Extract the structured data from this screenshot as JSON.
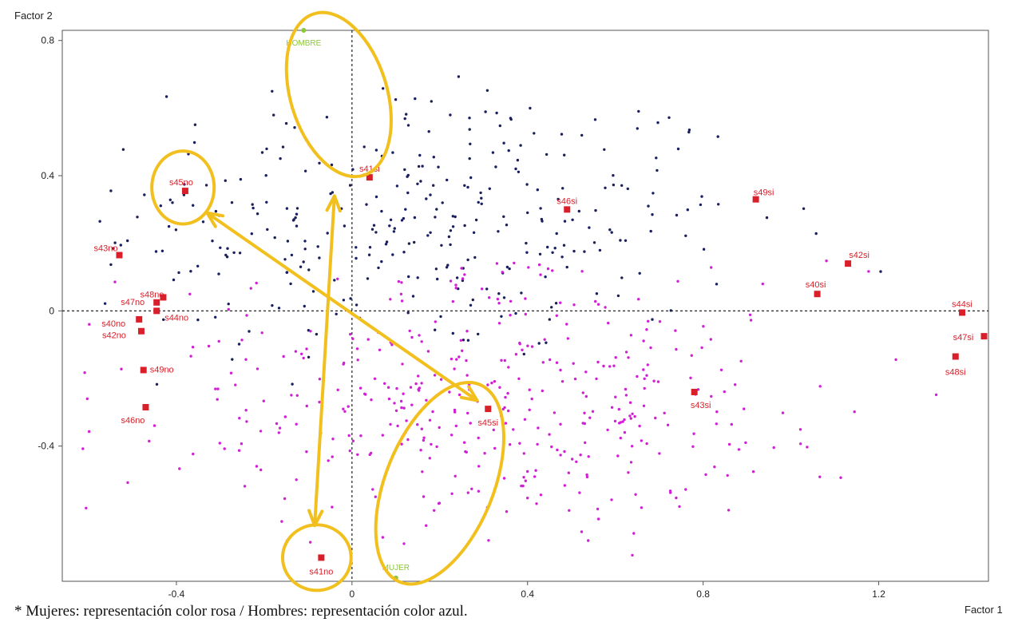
{
  "chart_data": {
    "type": "scatter",
    "xlabel": "Factor 1",
    "ylabel": "Factor 2",
    "xlim": [
      -0.66,
      1.45
    ],
    "ylim": [
      -0.8,
      0.83
    ],
    "x_ticks": [
      -0.4,
      0,
      0.4,
      0.8,
      1.2
    ],
    "y_ticks": [
      -0.4,
      0,
      0.4,
      0.8
    ],
    "x_tick_labels": [
      "-0.4",
      "0",
      "0.4",
      "0.8",
      "1.2"
    ],
    "y_tick_labels": [
      "-0.4",
      "0",
      "0.4",
      "0.8"
    ],
    "grid": false,
    "reference_lines": {
      "x": 0,
      "y": 0
    },
    "colors": {
      "hombres_points": "#1a1f5e",
      "mujeres_points": "#d21fd6",
      "modalities": "#d9202a",
      "supplementary": "#8dc63f",
      "highlight": "#f2c01e",
      "axes": "#222222"
    },
    "point_clouds": [
      {
        "name": "Hombres",
        "color": "#1a1f5e",
        "count": 330,
        "x_range": [
          -0.62,
          1.32
        ],
        "y_range": [
          -0.28,
          0.7
        ],
        "center": [
          0.15,
          0.27
        ]
      },
      {
        "name": "Mujeres",
        "color": "#d21fd6",
        "count": 420,
        "x_range": [
          -0.64,
          1.35
        ],
        "y_range": [
          -0.74,
          0.16
        ],
        "center": [
          0.3,
          -0.27
        ]
      }
    ],
    "supplementary_points": [
      {
        "label": "HOMBRE",
        "x": -0.11,
        "y": 0.83
      },
      {
        "label": "MUJER",
        "x": 0.1,
        "y": -0.79
      }
    ],
    "series": [
      {
        "name": "modalidades",
        "points": [
          {
            "label": "s41si",
            "x": 0.04,
            "y": 0.395
          },
          {
            "label": "s45no",
            "x": -0.38,
            "y": 0.355
          },
          {
            "label": "s43no",
            "x": -0.53,
            "y": 0.165
          },
          {
            "label": "s48no",
            "x": -0.43,
            "y": 0.04
          },
          {
            "label": "s47no",
            "x": -0.445,
            "y": 0.025
          },
          {
            "label": "s44no",
            "x": -0.445,
            "y": 0.0
          },
          {
            "label": "s40no",
            "x": -0.485,
            "y": -0.025
          },
          {
            "label": "s42no",
            "x": -0.48,
            "y": -0.06
          },
          {
            "label": "s49no",
            "x": -0.475,
            "y": -0.175
          },
          {
            "label": "s46no",
            "x": -0.47,
            "y": -0.285
          },
          {
            "label": "s46si",
            "x": 0.49,
            "y": 0.3
          },
          {
            "label": "s49si",
            "x": 0.92,
            "y": 0.33
          },
          {
            "label": "s42si",
            "x": 1.13,
            "y": 0.14
          },
          {
            "label": "s40si",
            "x": 1.06,
            "y": 0.05
          },
          {
            "label": "s44si",
            "x": 1.39,
            "y": -0.005
          },
          {
            "label": "s47si",
            "x": 1.44,
            "y": -0.075
          },
          {
            "label": "s48si",
            "x": 1.375,
            "y": -0.135
          },
          {
            "label": "s43si",
            "x": 0.78,
            "y": -0.24
          },
          {
            "label": "s45si",
            "x": 0.31,
            "y": -0.29
          },
          {
            "label": "s41no",
            "x": -0.07,
            "y": -0.73
          }
        ]
      }
    ],
    "annotations": {
      "ellipses": [
        {
          "around": "HOMBRE / s41si",
          "cx": -0.03,
          "cy": 0.64,
          "rx": 0.11,
          "ry": 0.25,
          "rotate": -17
        },
        {
          "around": "s45no",
          "cx": -0.385,
          "cy": 0.365,
          "rx": 0.071,
          "ry": 0.108,
          "rotate": 0
        },
        {
          "around": "s45si / MUJER",
          "cx": 0.2,
          "cy": -0.51,
          "rx": 0.123,
          "ry": 0.315,
          "rotate": 22
        },
        {
          "around": "s41no",
          "cx": -0.08,
          "cy": -0.73,
          "rx": 0.078,
          "ry": 0.097,
          "rotate": 0
        }
      ],
      "arrows": [
        {
          "from": [
            -0.33,
            0.29
          ],
          "to": [
            0.285,
            -0.265
          ],
          "double": true
        },
        {
          "from": [
            -0.04,
            0.34
          ],
          "to": [
            -0.085,
            -0.635
          ],
          "double": true
        }
      ]
    }
  },
  "caption": "* Mujeres: representación color rosa / Hombres: representación color azul."
}
